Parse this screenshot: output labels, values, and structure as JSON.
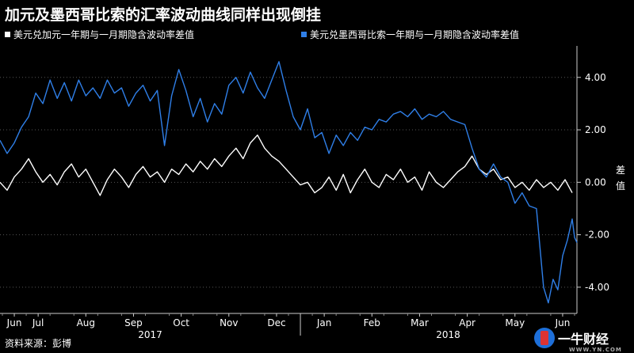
{
  "title": "加元及墨西哥比索的汇率波动曲线同样出现倒挂",
  "source": "资料来源：彭博",
  "logo": {
    "text": "一牛财经",
    "sub": "WWW.YN.COM"
  },
  "colors": {
    "background": "#000000",
    "usdcad": "#ffffff",
    "usdmxn": "#2f7fe8",
    "axis": "#cccccc",
    "grid": "#555555"
  },
  "chart_data": {
    "type": "line",
    "ylabel": "差值",
    "ylim": [
      -5.0,
      5.2
    ],
    "yticks": [
      4.0,
      2.0,
      0.0,
      -2.0,
      -4.0
    ],
    "ytick_labels": [
      "4.00",
      "2.00",
      "0.00",
      "-2.00",
      "-4.00"
    ],
    "grid": true,
    "legend_placement": "top",
    "xlim": [
      0,
      24.2
    ],
    "xticks": [
      {
        "x": 0.6,
        "label": "Jun"
      },
      {
        "x": 1.6,
        "label": "Jul"
      },
      {
        "x": 3.6,
        "label": "Aug"
      },
      {
        "x": 5.6,
        "label": "Sep"
      },
      {
        "x": 7.6,
        "label": "Oct"
      },
      {
        "x": 9.6,
        "label": "Nov"
      },
      {
        "x": 11.6,
        "label": "Dec"
      },
      {
        "x": 13.6,
        "label": "Jan"
      },
      {
        "x": 15.6,
        "label": "Feb"
      },
      {
        "x": 17.6,
        "label": "Mar"
      },
      {
        "x": 19.6,
        "label": "Apr"
      },
      {
        "x": 21.6,
        "label": "May"
      },
      {
        "x": 23.6,
        "label": "Jun"
      }
    ],
    "years": [
      {
        "x": 6.3,
        "label": "2017"
      },
      {
        "x": 18.8,
        "label": "2018"
      }
    ],
    "year_divider_x": 12.6,
    "series": [
      {
        "name": "美元兑加元一年期与一月期隐含波动率差值",
        "color": "#ffffff",
        "points": [
          [
            0.0,
            0.0
          ],
          [
            0.3,
            -0.3
          ],
          [
            0.6,
            0.2
          ],
          [
            0.9,
            0.5
          ],
          [
            1.2,
            0.9
          ],
          [
            1.5,
            0.4
          ],
          [
            1.8,
            0.0
          ],
          [
            2.1,
            0.3
          ],
          [
            2.4,
            -0.1
          ],
          [
            2.7,
            0.4
          ],
          [
            3.0,
            0.7
          ],
          [
            3.3,
            0.2
          ],
          [
            3.6,
            0.5
          ],
          [
            3.9,
            0.0
          ],
          [
            4.2,
            -0.5
          ],
          [
            4.5,
            0.1
          ],
          [
            4.8,
            0.5
          ],
          [
            5.1,
            0.2
          ],
          [
            5.4,
            -0.2
          ],
          [
            5.7,
            0.3
          ],
          [
            6.0,
            0.6
          ],
          [
            6.3,
            0.2
          ],
          [
            6.6,
            0.4
          ],
          [
            6.9,
            0.0
          ],
          [
            7.2,
            0.5
          ],
          [
            7.5,
            0.3
          ],
          [
            7.8,
            0.7
          ],
          [
            8.1,
            0.4
          ],
          [
            8.4,
            0.8
          ],
          [
            8.7,
            0.5
          ],
          [
            9.0,
            0.9
          ],
          [
            9.3,
            0.6
          ],
          [
            9.6,
            1.0
          ],
          [
            9.9,
            1.3
          ],
          [
            10.2,
            0.9
          ],
          [
            10.5,
            1.5
          ],
          [
            10.8,
            1.8
          ],
          [
            11.1,
            1.3
          ],
          [
            11.4,
            1.0
          ],
          [
            11.7,
            0.8
          ],
          [
            12.0,
            0.5
          ],
          [
            12.3,
            0.2
          ],
          [
            12.6,
            -0.1
          ],
          [
            12.9,
            0.0
          ],
          [
            13.2,
            -0.4
          ],
          [
            13.5,
            -0.2
          ],
          [
            13.8,
            0.2
          ],
          [
            14.1,
            -0.3
          ],
          [
            14.4,
            0.3
          ],
          [
            14.7,
            -0.4
          ],
          [
            15.0,
            0.1
          ],
          [
            15.3,
            0.5
          ],
          [
            15.6,
            0.0
          ],
          [
            15.9,
            -0.2
          ],
          [
            16.2,
            0.3
          ],
          [
            16.5,
            0.1
          ],
          [
            16.8,
            0.5
          ],
          [
            17.1,
            0.0
          ],
          [
            17.4,
            0.2
          ],
          [
            17.7,
            -0.3
          ],
          [
            18.0,
            0.4
          ],
          [
            18.3,
            0.0
          ],
          [
            18.6,
            -0.2
          ],
          [
            18.9,
            0.1
          ],
          [
            19.2,
            0.4
          ],
          [
            19.5,
            0.6
          ],
          [
            19.8,
            1.0
          ],
          [
            20.1,
            0.5
          ],
          [
            20.4,
            0.3
          ],
          [
            20.7,
            0.5
          ],
          [
            21.0,
            0.1
          ],
          [
            21.3,
            0.2
          ],
          [
            21.6,
            -0.2
          ],
          [
            21.9,
            0.0
          ],
          [
            22.2,
            -0.3
          ],
          [
            22.5,
            0.1
          ],
          [
            22.8,
            -0.2
          ],
          [
            23.1,
            0.0
          ],
          [
            23.4,
            -0.3
          ],
          [
            23.7,
            0.1
          ],
          [
            24.0,
            -0.4
          ]
        ]
      },
      {
        "name": "美元兑墨西哥比索一年期与一月期隐含波动率差值",
        "color": "#2f7fe8",
        "points": [
          [
            0.0,
            1.6
          ],
          [
            0.3,
            1.1
          ],
          [
            0.6,
            1.5
          ],
          [
            0.9,
            2.1
          ],
          [
            1.2,
            2.5
          ],
          [
            1.5,
            3.4
          ],
          [
            1.8,
            3.0
          ],
          [
            2.1,
            3.9
          ],
          [
            2.4,
            3.2
          ],
          [
            2.7,
            3.8
          ],
          [
            3.0,
            3.1
          ],
          [
            3.3,
            3.9
          ],
          [
            3.6,
            3.3
          ],
          [
            3.9,
            3.6
          ],
          [
            4.2,
            3.2
          ],
          [
            4.5,
            3.9
          ],
          [
            4.8,
            3.4
          ],
          [
            5.1,
            3.6
          ],
          [
            5.4,
            2.9
          ],
          [
            5.7,
            3.4
          ],
          [
            6.0,
            3.7
          ],
          [
            6.3,
            3.1
          ],
          [
            6.6,
            3.5
          ],
          [
            6.9,
            1.4
          ],
          [
            7.2,
            3.3
          ],
          [
            7.5,
            4.3
          ],
          [
            7.8,
            3.5
          ],
          [
            8.1,
            2.5
          ],
          [
            8.4,
            3.2
          ],
          [
            8.7,
            2.3
          ],
          [
            9.0,
            3.0
          ],
          [
            9.3,
            2.6
          ],
          [
            9.6,
            3.7
          ],
          [
            9.9,
            4.0
          ],
          [
            10.2,
            3.4
          ],
          [
            10.5,
            4.2
          ],
          [
            10.8,
            3.6
          ],
          [
            11.1,
            3.2
          ],
          [
            11.4,
            3.9
          ],
          [
            11.7,
            4.6
          ],
          [
            12.0,
            3.5
          ],
          [
            12.3,
            2.5
          ],
          [
            12.6,
            2.0
          ],
          [
            12.9,
            2.8
          ],
          [
            13.2,
            1.7
          ],
          [
            13.5,
            1.9
          ],
          [
            13.8,
            1.1
          ],
          [
            14.1,
            1.8
          ],
          [
            14.4,
            1.4
          ],
          [
            14.7,
            1.9
          ],
          [
            15.0,
            1.6
          ],
          [
            15.3,
            2.1
          ],
          [
            15.6,
            2.0
          ],
          [
            15.9,
            2.4
          ],
          [
            16.2,
            2.3
          ],
          [
            16.5,
            2.6
          ],
          [
            16.8,
            2.7
          ],
          [
            17.1,
            2.5
          ],
          [
            17.4,
            2.8
          ],
          [
            17.7,
            2.4
          ],
          [
            18.0,
            2.6
          ],
          [
            18.3,
            2.5
          ],
          [
            18.6,
            2.7
          ],
          [
            18.9,
            2.4
          ],
          [
            19.2,
            2.3
          ],
          [
            19.5,
            2.2
          ],
          [
            19.8,
            1.3
          ],
          [
            20.1,
            0.5
          ],
          [
            20.4,
            0.2
          ],
          [
            20.7,
            0.7
          ],
          [
            21.0,
            0.2
          ],
          [
            21.3,
            0.0
          ],
          [
            21.6,
            -0.8
          ],
          [
            21.9,
            -0.4
          ],
          [
            22.2,
            -0.9
          ],
          [
            22.5,
            -1.0
          ],
          [
            22.8,
            -4.0
          ],
          [
            23.0,
            -4.6
          ],
          [
            23.2,
            -3.7
          ],
          [
            23.4,
            -4.1
          ],
          [
            23.6,
            -2.8
          ],
          [
            23.8,
            -2.2
          ],
          [
            24.0,
            -1.4
          ],
          [
            24.1,
            -2.1
          ],
          [
            24.2,
            -2.3
          ]
        ]
      }
    ]
  }
}
